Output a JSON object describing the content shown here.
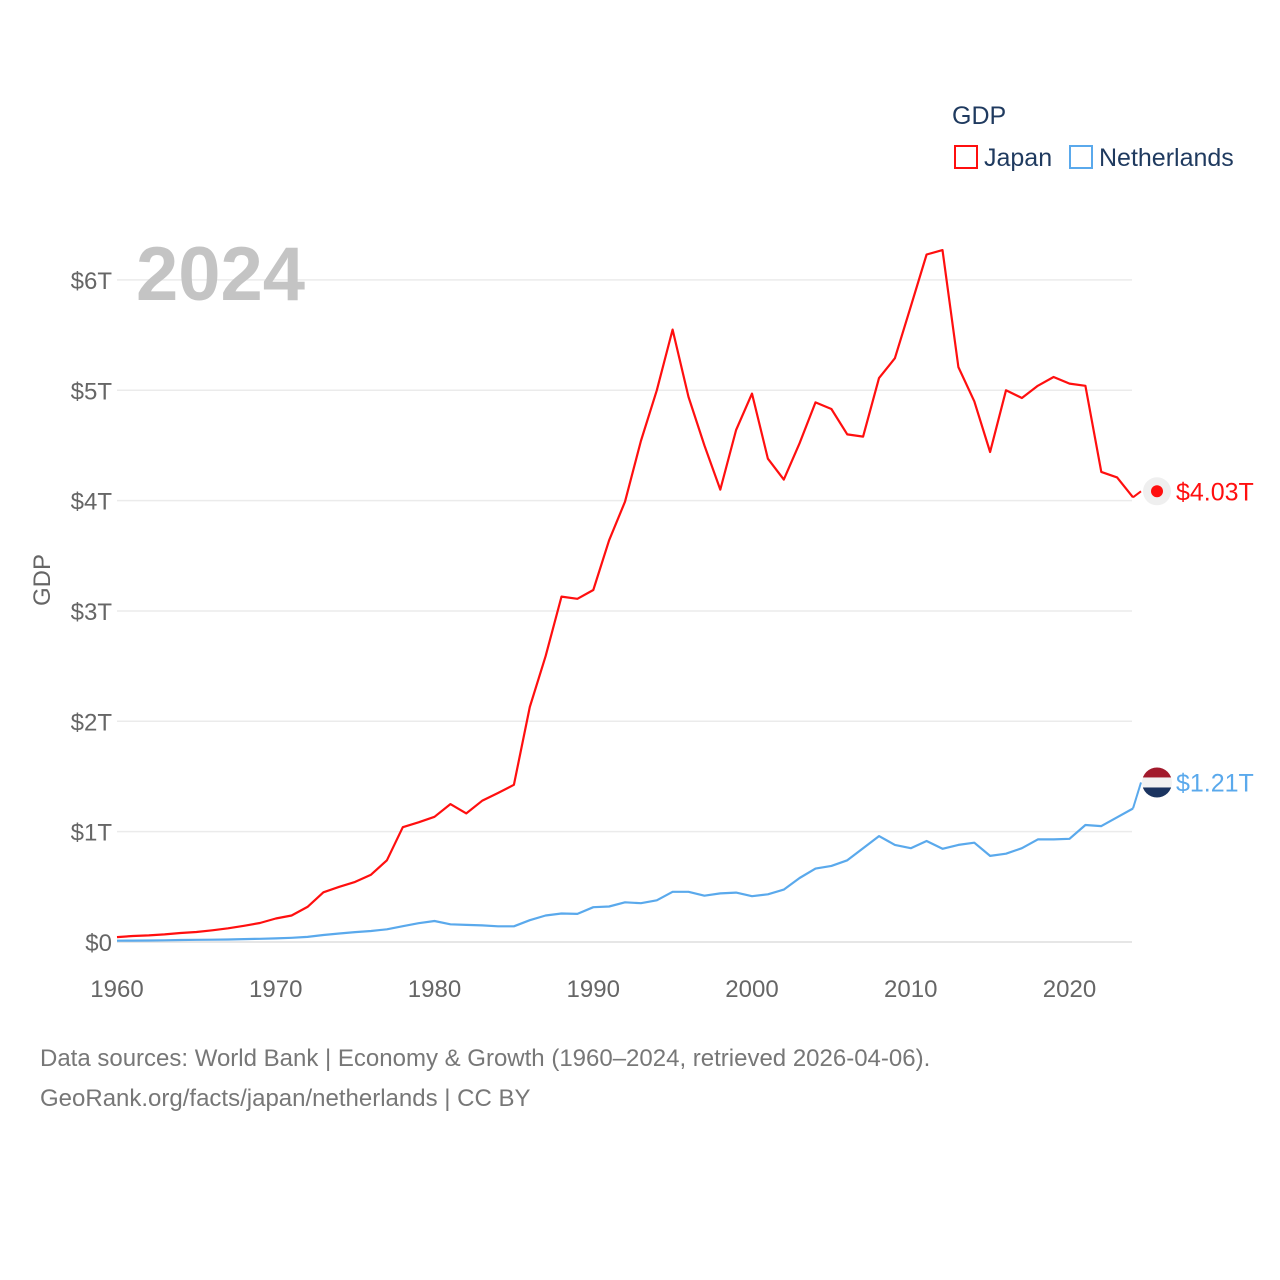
{
  "chart_data": {
    "type": "line",
    "year_label": "2024",
    "ylabel": "GDP",
    "legend_title": "GDP",
    "legend_position": "top-right",
    "ylim": [
      0,
      6
    ],
    "xlim": [
      1960,
      2024
    ],
    "y_ticks": [
      {
        "v": 0,
        "label": "$0"
      },
      {
        "v": 1,
        "label": "$1T"
      },
      {
        "v": 2,
        "label": "$2T"
      },
      {
        "v": 3,
        "label": "$3T"
      },
      {
        "v": 4,
        "label": "$4T"
      },
      {
        "v": 5,
        "label": "$5T"
      },
      {
        "v": 6,
        "label": "$6T"
      }
    ],
    "x_ticks": [
      1960,
      1970,
      1980,
      1990,
      2000,
      2010,
      2020
    ],
    "grid": true,
    "x": [
      1960,
      1961,
      1962,
      1963,
      1964,
      1965,
      1966,
      1967,
      1968,
      1969,
      1970,
      1971,
      1972,
      1973,
      1974,
      1975,
      1976,
      1977,
      1978,
      1979,
      1980,
      1981,
      1982,
      1983,
      1984,
      1985,
      1986,
      1987,
      1988,
      1989,
      1990,
      1991,
      1992,
      1993,
      1994,
      1995,
      1996,
      1997,
      1998,
      1999,
      2000,
      2001,
      2002,
      2003,
      2004,
      2005,
      2006,
      2007,
      2008,
      2009,
      2010,
      2011,
      2012,
      2013,
      2014,
      2015,
      2016,
      2017,
      2018,
      2019,
      2020,
      2021,
      2022,
      2023,
      2024
    ],
    "series": [
      {
        "name": "Japan",
        "color": "#ff0f0f",
        "end_label": "$4.03T",
        "values": [
          0.044,
          0.054,
          0.06,
          0.069,
          0.082,
          0.091,
          0.106,
          0.124,
          0.147,
          0.172,
          0.213,
          0.24,
          0.318,
          0.45,
          0.5,
          0.545,
          0.61,
          0.74,
          1.04,
          1.085,
          1.135,
          1.25,
          1.165,
          1.28,
          1.35,
          1.425,
          2.13,
          2.59,
          3.13,
          3.11,
          3.19,
          3.64,
          3.99,
          4.54,
          5.0,
          5.55,
          4.94,
          4.5,
          4.1,
          4.64,
          4.97,
          4.38,
          4.19,
          4.52,
          4.89,
          4.83,
          4.6,
          4.58,
          5.11,
          5.29,
          5.76,
          6.23,
          6.27,
          5.21,
          4.9,
          4.44,
          5.0,
          4.93,
          5.04,
          5.12,
          5.06,
          5.04,
          4.26,
          4.21,
          4.03
        ]
      },
      {
        "name": "Netherlands",
        "color": "#5aa9ec",
        "end_label": "$1.21T",
        "values": [
          0.012,
          0.013,
          0.014,
          0.015,
          0.018,
          0.02,
          0.021,
          0.023,
          0.026,
          0.029,
          0.033,
          0.038,
          0.046,
          0.063,
          0.077,
          0.09,
          0.1,
          0.115,
          0.143,
          0.17,
          0.19,
          0.16,
          0.155,
          0.15,
          0.142,
          0.142,
          0.198,
          0.24,
          0.258,
          0.255,
          0.315,
          0.322,
          0.36,
          0.352,
          0.378,
          0.455,
          0.455,
          0.42,
          0.44,
          0.448,
          0.415,
          0.432,
          0.475,
          0.58,
          0.665,
          0.69,
          0.74,
          0.85,
          0.96,
          0.88,
          0.85,
          0.915,
          0.845,
          0.88,
          0.9,
          0.78,
          0.8,
          0.85,
          0.93,
          0.93,
          0.935,
          1.06,
          1.05,
          1.13,
          1.21
        ]
      }
    ]
  },
  "footer": {
    "line1": "Data sources: World Bank | Economy & Growth (1960–2024, retrieved 2026-04-06).",
    "line2": "GeoRank.org/facts/japan/netherlands | CC BY"
  }
}
